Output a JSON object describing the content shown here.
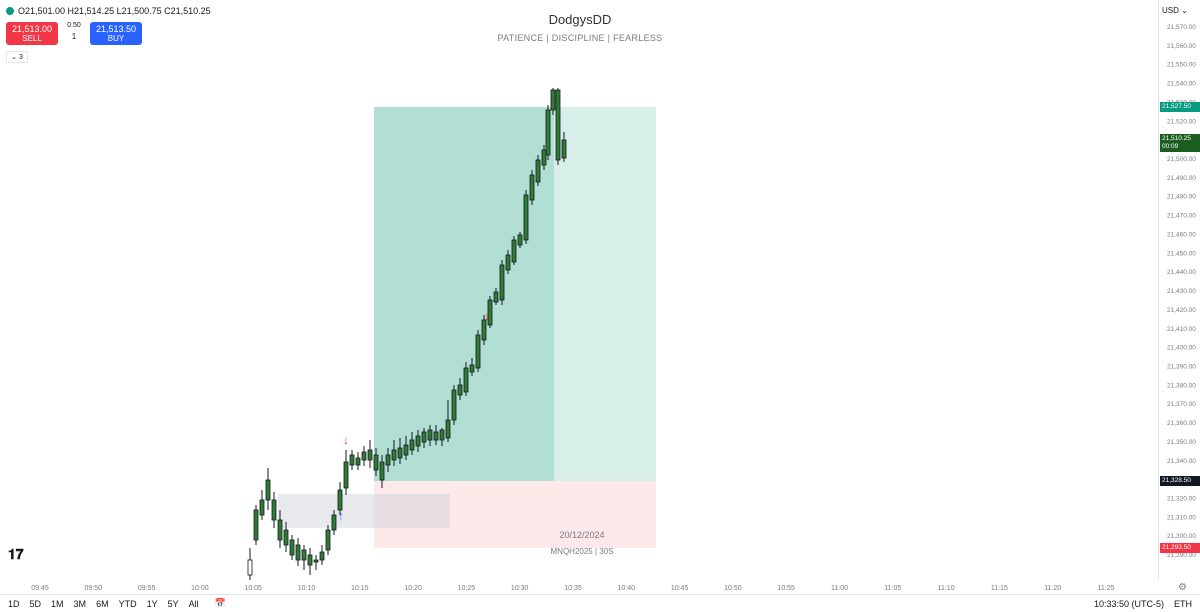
{
  "header": {
    "ohlc": "O21,501.00 H21,514.25 L21,500.75 C21,510.25",
    "sell_price": "21,513.00",
    "sell_label": "SELL",
    "spread": "0.50",
    "quantity": "1",
    "buy_price": "21,513.50",
    "buy_label": "BUY",
    "indicator_count": "3"
  },
  "watermark": {
    "title": "DodgysDD",
    "subtitle": "PATIENCE  |  DISCIPLINE  |  FEARLESS",
    "date": "20/12/2024",
    "symbol": "MNQH2025  |  30S"
  },
  "price_axis": {
    "currency": "USD",
    "ticks": [
      "21,570.00",
      "21,560.00",
      "21,550.00",
      "21,540.00",
      "21,530.00",
      "21,520.00",
      "21,510.00",
      "21,500.00",
      "21,490.00",
      "21,480.00",
      "21,470.00",
      "21,460.00",
      "21,450.00",
      "21,440.00",
      "21,430.00",
      "21,420.00",
      "21,410.00",
      "21,400.00",
      "21,390.00",
      "21,380.00",
      "21,370.00",
      "21,360.00",
      "21,350.00",
      "21,340.00",
      "21,330.00",
      "21,320.00",
      "21,310.00",
      "21,300.00",
      "21,290.00"
    ],
    "target_label": "21,527.50",
    "current_label": "21,510.25",
    "countdown": "00:09",
    "entry_label": "21,328.50",
    "stop_label": "21,293.50",
    "colors": {
      "target": "#089981",
      "current": "#1b5e20",
      "entry": "#131722",
      "stop": "#f23645"
    }
  },
  "time_axis": {
    "ticks": [
      "09:45",
      "09:50",
      "09:55",
      "10:00",
      "10:05",
      "10:10",
      "10:15",
      "10:20",
      "10:25",
      "10:30",
      "10:35",
      "10:40",
      "10:45",
      "10:50",
      "10:55",
      "11:00",
      "11:05",
      "11:10",
      "11:15",
      "11:20",
      "11:25"
    ]
  },
  "bottom_bar": {
    "ranges": [
      "1D",
      "5D",
      "1M",
      "3M",
      "6M",
      "YTD",
      "1Y",
      "5Y",
      "All"
    ],
    "clock": "10:33:50 (UTC-5)",
    "session": "ETH"
  },
  "colors": {
    "profit_zone": "#b2dfd4",
    "profit_zone_light": "#d7eee9",
    "loss_zone": "#fde8ea",
    "up_candle": "#ffffff",
    "candle_border": "#131722",
    "arrow_down": "#f23645",
    "arrow_up": "#2962ff"
  },
  "icons": {
    "logo": "tradingview-logo-icon",
    "calendar": "calendar-icon",
    "settings": "gear-icon",
    "chevron": "chevron-down-icon"
  }
}
